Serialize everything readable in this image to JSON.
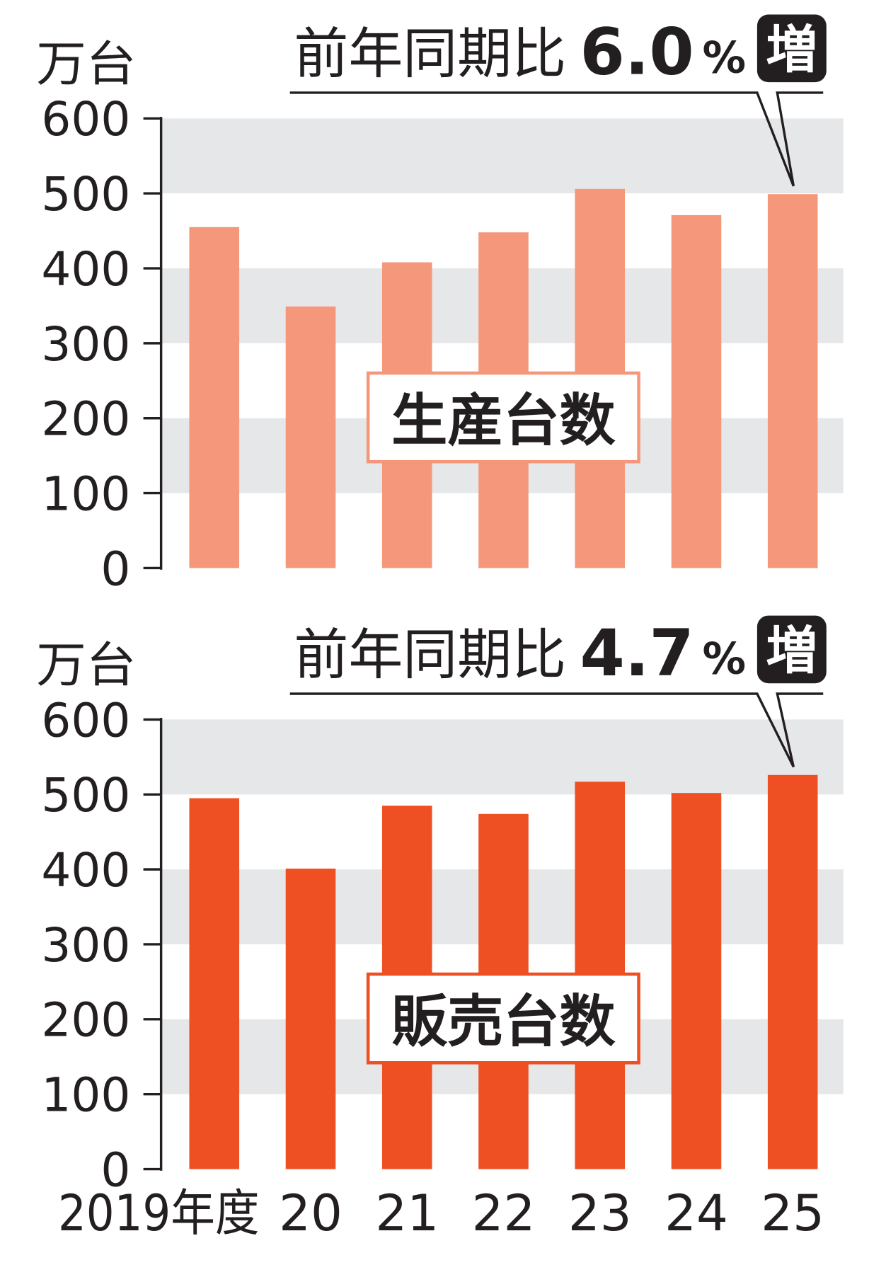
{
  "colors": {
    "text": "#231F20",
    "band": "#E6E7E8",
    "badge": "#231F20"
  },
  "chart_data": {
    "type": "bar",
    "categories": [
      "2019年度",
      "20",
      "21",
      "22",
      "23",
      "24",
      "25"
    ],
    "ylabel": "万台",
    "ylim": [
      0,
      600
    ],
    "yticks": [
      0,
      100,
      200,
      300,
      400,
      500,
      600
    ],
    "grid": true,
    "series": [
      {
        "name": "生産台数",
        "values": [
          455,
          349,
          408,
          448,
          506,
          471,
          499
        ],
        "color": "#F4977A",
        "annotation": {
          "text": "前年同期比",
          "value": "6.0",
          "unit": "%",
          "badge": "増"
        }
      },
      {
        "name": "販売台数",
        "values": [
          495,
          401,
          485,
          474,
          517,
          502,
          526
        ],
        "color": "#EE5024",
        "annotation": {
          "text": "前年同期比",
          "value": "4.7",
          "unit": "%",
          "badge": "増"
        }
      }
    ]
  }
}
